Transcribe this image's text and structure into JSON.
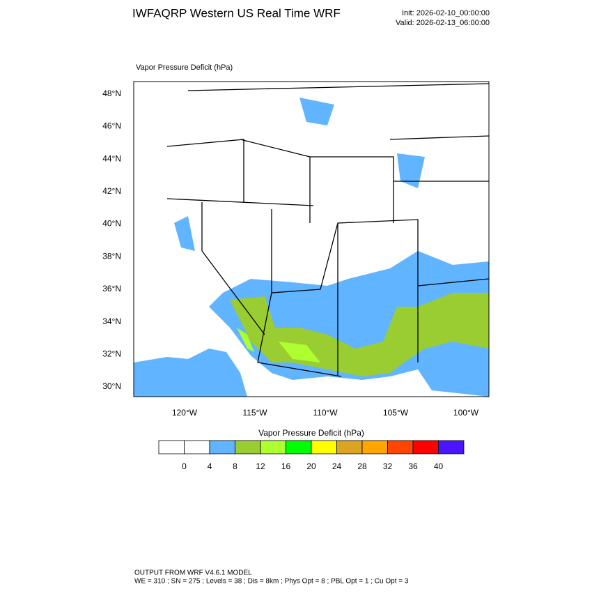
{
  "header": {
    "title": "IWFAQRP Western US Real Time WRF",
    "init": "Init: 2026-02-10_00:00:00",
    "valid": "Valid: 2026-02-13_06:00:00"
  },
  "map": {
    "field_label": "Vapor Pressure Deficit   (hPa)",
    "lat_labels": [
      "30°N",
      "32°N",
      "34°N",
      "36°N",
      "38°N",
      "40°N",
      "42°N",
      "44°N",
      "46°N",
      "48°N"
    ],
    "lon_labels": [
      "120°W",
      "115°W",
      "110°W",
      "105°W",
      "100°W"
    ]
  },
  "colorbar": {
    "title": "Vapor Pressure Deficit  (hPa)",
    "colors": [
      "#ffffff",
      "#ffffff",
      "#61b4ff",
      "#9acd32",
      "#adff2f",
      "#00ff00",
      "#ffff00",
      "#daa520",
      "#ffa500",
      "#ff4500",
      "#ff0000",
      "#4b14ff"
    ],
    "labels": [
      "0",
      "4",
      "8",
      "12",
      "16",
      "20",
      "24",
      "28",
      "32",
      "36",
      "40"
    ]
  },
  "footer": {
    "line1": "OUTPUT FROM WRF V4.6.1 MODEL",
    "line2": "WE = 310 ; SN = 275 ; Levels = 38 ; Dis = 8km ; Phys Opt = 8 ; PBL Opt = 1 ; Cu Opt = 3"
  }
}
